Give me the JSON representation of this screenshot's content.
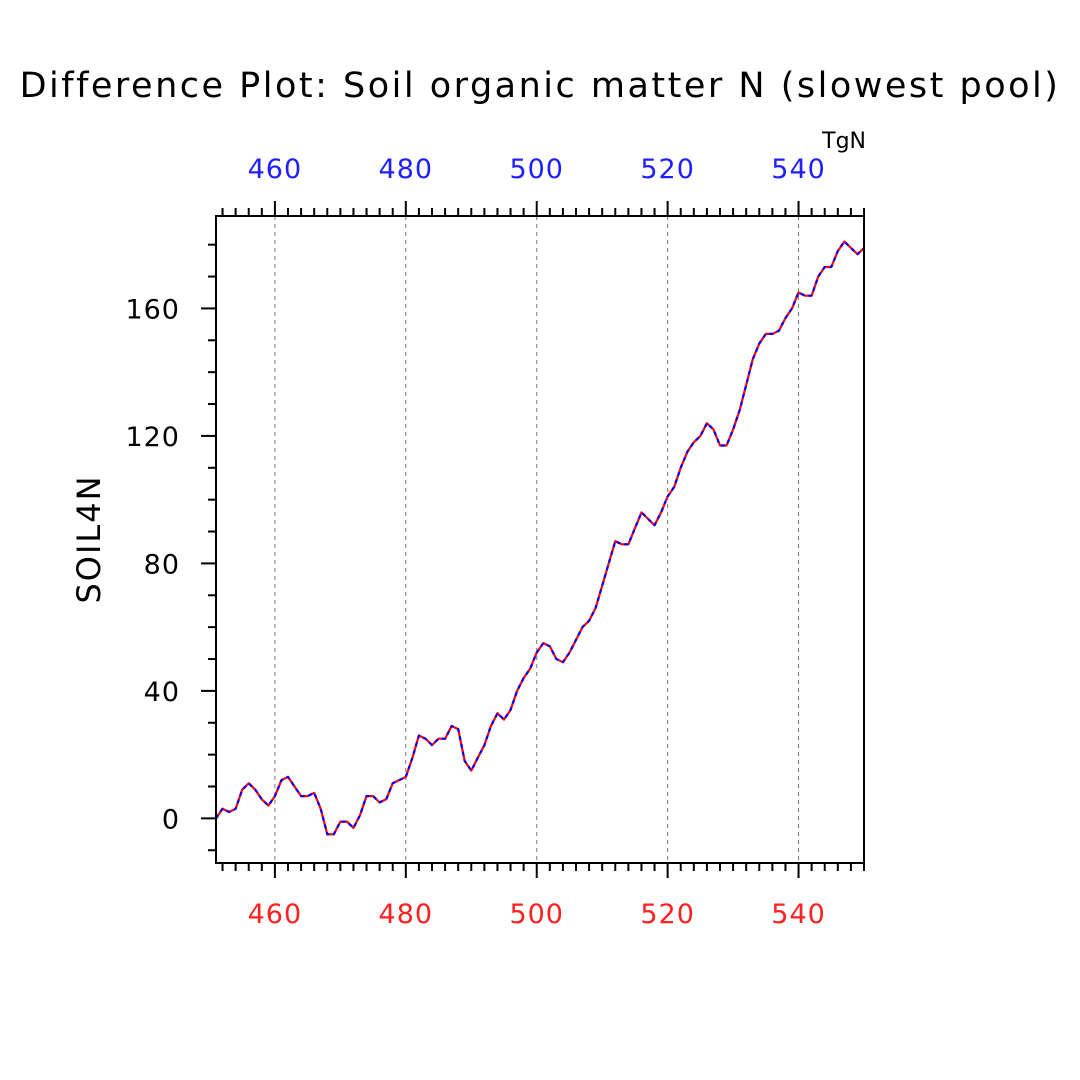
{
  "chart_data": {
    "type": "line",
    "title": "Difference Plot: Soil organic matter N (slowest pool)",
    "units": "TgN",
    "ylabel": "SOIL4N",
    "xlim": [
      451,
      550
    ],
    "ylim": [
      -14,
      189
    ],
    "bottom_axis": {
      "ticks": [
        "460",
        "480",
        "500",
        "520",
        "540"
      ],
      "color": "#ff2020"
    },
    "top_axis": {
      "ticks": [
        "460",
        "480",
        "500",
        "520",
        "540"
      ],
      "color": "#2020ff"
    },
    "y_ticks": [
      "0",
      "40",
      "80",
      "120",
      "160"
    ],
    "grid": "vertical dashed at major x ticks",
    "series": [
      {
        "color": "#ff0000",
        "dash_color": "#0000ff",
        "x": [
          451,
          452,
          453,
          454,
          455,
          456,
          457,
          458,
          459,
          460,
          461,
          462,
          463,
          464,
          465,
          466,
          467,
          468,
          469,
          470,
          471,
          472,
          473,
          474,
          475,
          476,
          477,
          478,
          479,
          480,
          481,
          482,
          483,
          484,
          485,
          486,
          487,
          488,
          489,
          490,
          491,
          492,
          493,
          494,
          495,
          496,
          497,
          498,
          499,
          500,
          501,
          502,
          503,
          504,
          505,
          506,
          507,
          508,
          509,
          510,
          511,
          512,
          513,
          514,
          515,
          516,
          517,
          518,
          519,
          520,
          521,
          522,
          523,
          524,
          525,
          526,
          527,
          528,
          529,
          530,
          531,
          532,
          533,
          534,
          535,
          536,
          537,
          538,
          539,
          540,
          541,
          542,
          543,
          544,
          545,
          546,
          547,
          548,
          549,
          550
        ],
        "values": [
          0,
          3,
          2,
          3,
          9,
          11,
          9,
          6,
          4,
          7,
          12,
          13,
          10,
          7,
          7,
          8,
          3,
          -5,
          -5,
          -1,
          -1,
          -3,
          1,
          7,
          7,
          5,
          6,
          11,
          12,
          13,
          19,
          26,
          25,
          23,
          25,
          25,
          29,
          28,
          18,
          15,
          19,
          23,
          29,
          33,
          31,
          34,
          40,
          44,
          47,
          52,
          55,
          54,
          50,
          49,
          52,
          56,
          60,
          62,
          66,
          73,
          80,
          87,
          86,
          86,
          91,
          96,
          94,
          92,
          96,
          101,
          104,
          110,
          115,
          118,
          120,
          124,
          122,
          117,
          117,
          122,
          128,
          136,
          144,
          149,
          152,
          152,
          153,
          157,
          160,
          165,
          164,
          164,
          170,
          173,
          173,
          178,
          181,
          179,
          177,
          179
        ]
      }
    ]
  }
}
